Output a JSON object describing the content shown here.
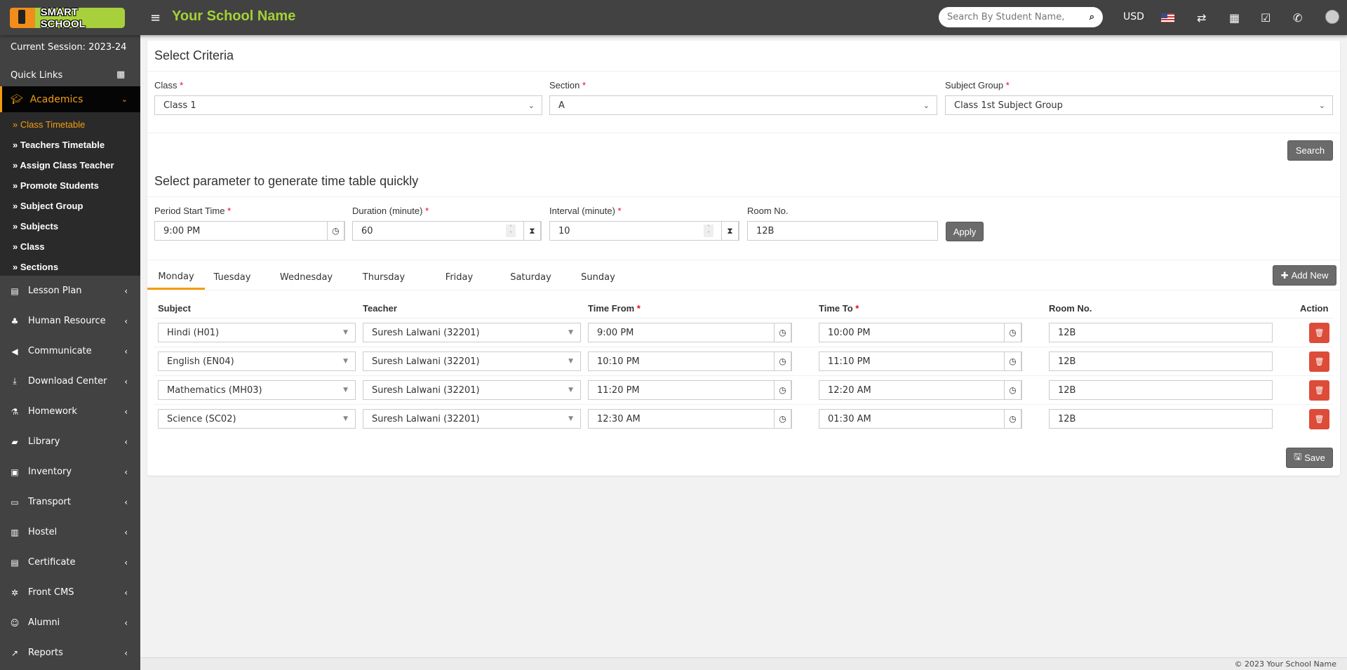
{
  "header": {
    "logo_text": "SMART SCHOOL",
    "school_name": "Your School Name",
    "search_placeholder": "Search By Student Name,",
    "currency": "USD"
  },
  "sidebar": {
    "session": "Current Session: 2023-24",
    "quick_links": "Quick Links",
    "academics": "Academics",
    "submenu": [
      "Class Timetable",
      "Teachers Timetable",
      "Assign Class Teacher",
      "Promote Students",
      "Subject Group",
      "Subjects",
      "Class",
      "Sections"
    ],
    "menu": [
      {
        "label": "Lesson Plan",
        "icon": "▤"
      },
      {
        "label": "Human Resource",
        "icon": "♣"
      },
      {
        "label": "Communicate",
        "icon": "◀"
      },
      {
        "label": "Download Center",
        "icon": "⤓"
      },
      {
        "label": "Homework",
        "icon": "⚗"
      },
      {
        "label": "Library",
        "icon": "▰"
      },
      {
        "label": "Inventory",
        "icon": "▣"
      },
      {
        "label": "Transport",
        "icon": "▭"
      },
      {
        "label": "Hostel",
        "icon": "▥"
      },
      {
        "label": "Certificate",
        "icon": "▤"
      },
      {
        "label": "Front CMS",
        "icon": "✲"
      },
      {
        "label": "Alumni",
        "icon": "☺"
      },
      {
        "label": "Reports",
        "icon": "↗"
      }
    ]
  },
  "criteria": {
    "title": "Select Criteria",
    "class_label": "Class",
    "class_value": "Class 1",
    "section_label": "Section",
    "section_value": "A",
    "group_label": "Subject Group",
    "group_value": "Class 1st Subject Group",
    "search": "Search"
  },
  "params": {
    "title": "Select parameter to generate time table quickly",
    "start_label": "Period Start Time",
    "start_value": "9:00 PM",
    "duration_label": "Duration (minute)",
    "duration_value": "60",
    "interval_label": "Interval (minute)",
    "interval_value": "10",
    "room_label": "Room No.",
    "room_value": "12B",
    "apply": "Apply"
  },
  "tabs": [
    "Monday",
    "Tuesday",
    "Wednesday",
    "Thursday",
    "Friday",
    "Saturday",
    "Sunday"
  ],
  "add_new": "Add New",
  "table": {
    "headers": [
      "Subject",
      "Teacher",
      "Time From",
      "Time To",
      "Room No.",
      "Action"
    ],
    "rows": [
      {
        "subject": "Hindi (H01)",
        "teacher": "Suresh Lalwani (32201)",
        "from": "9:00 PM",
        "to": "10:00 PM",
        "room": "12B"
      },
      {
        "subject": "English (EN04)",
        "teacher": "Suresh Lalwani (32201)",
        "from": "10:10 PM",
        "to": "11:10 PM",
        "room": "12B"
      },
      {
        "subject": "Mathematics (MH03)",
        "teacher": "Suresh Lalwani (32201)",
        "from": "11:20 PM",
        "to": "12:20 AM",
        "room": "12B"
      },
      {
        "subject": "Science (SC02)",
        "teacher": "Suresh Lalwani (32201)",
        "from": "12:30 AM",
        "to": "01:30 AM",
        "room": "12B"
      }
    ]
  },
  "save": "Save",
  "footer": "© 2023 Your School Name",
  "colors": {
    "accent": "#f39c12",
    "brand_green": "#a5d135",
    "header_bg": "#424242",
    "delete": "#dd4b39"
  }
}
